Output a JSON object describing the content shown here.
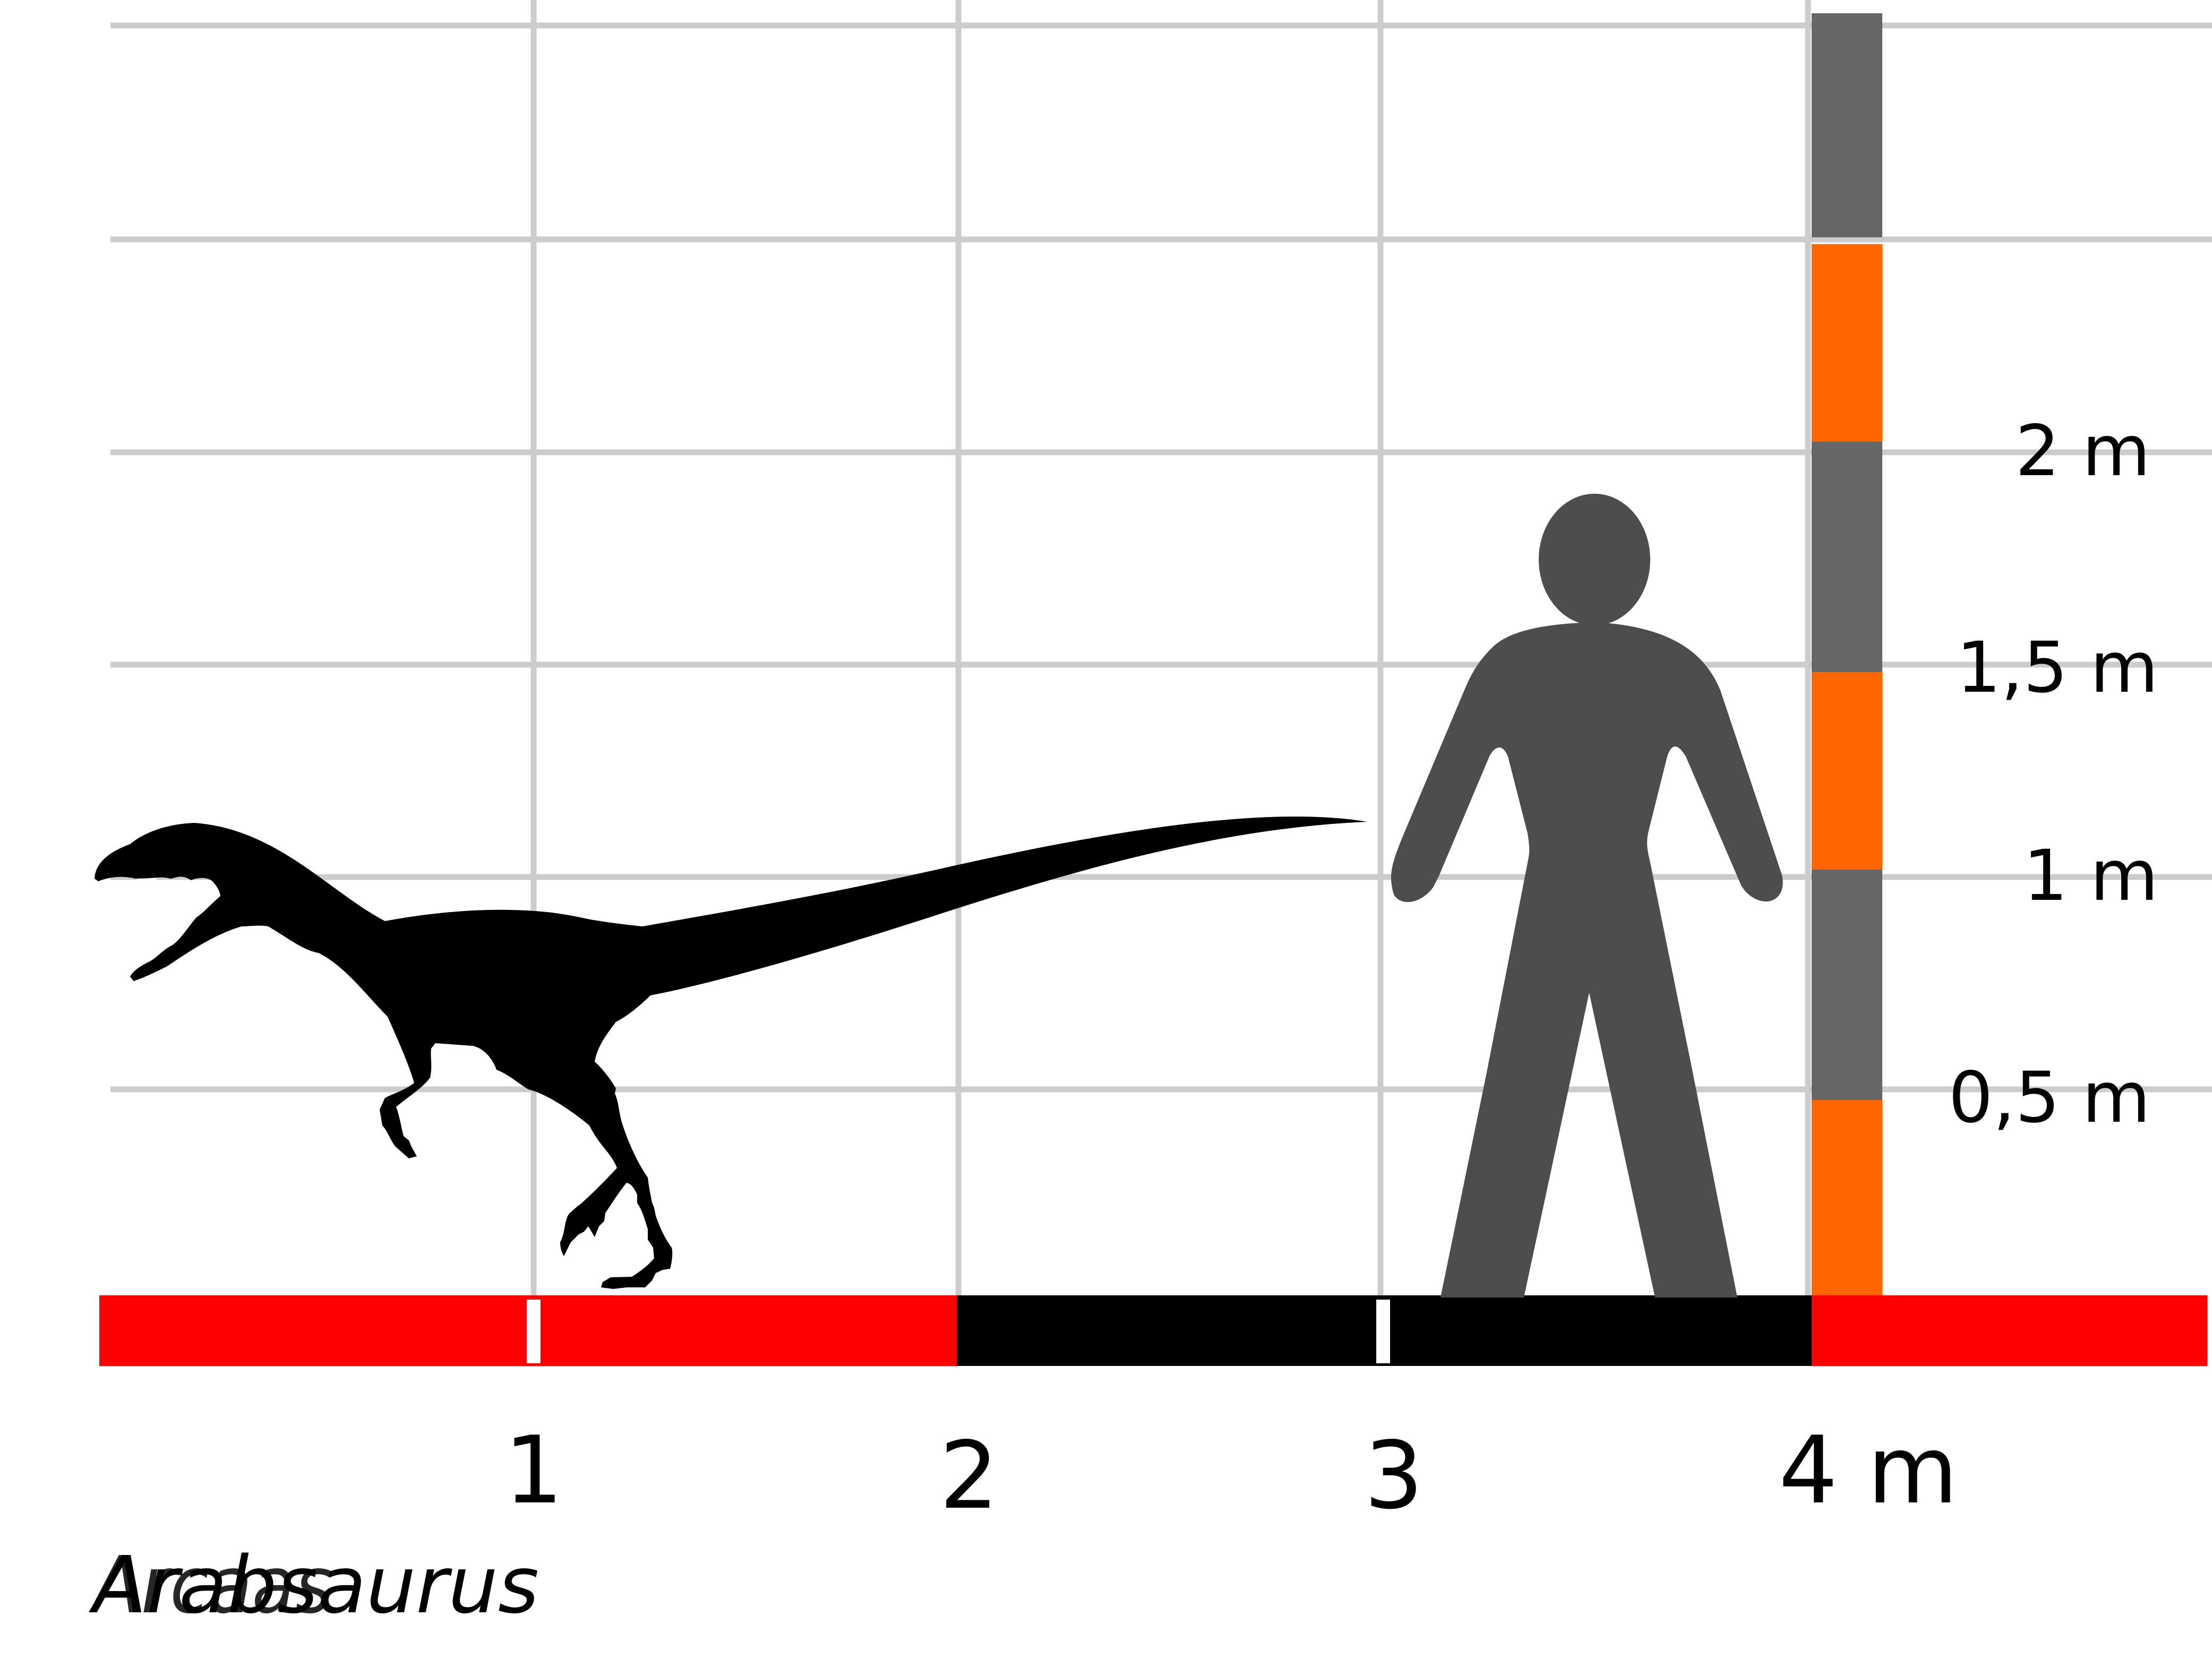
{
  "diagram": {
    "taxon_name": "Arabsaurus",
    "taxon_name_overlay": "Arcaas",
    "horizontal_scale": {
      "unit": "m",
      "tick_labels": [
        "1",
        "2",
        "3",
        "4 m"
      ],
      "tick_values": [
        1,
        2,
        3,
        4
      ]
    },
    "vertical_scale": {
      "unit": "m",
      "tick_labels": [
        "0,5 m",
        "1 m",
        "1,5 m",
        "2 m"
      ],
      "tick_values": [
        0.5,
        1,
        1.5,
        2
      ]
    },
    "colors": {
      "grid": "#cccccc",
      "bar_red": "#ff0000",
      "bar_black": "#000000",
      "ruler_orange": "#ff6600",
      "ruler_gray": "#666666",
      "human": "#4d4d4d",
      "dinosaur": "#000000"
    },
    "human_icon": "human-silhouette",
    "dinosaur_icon": "theropod-silhouette"
  }
}
